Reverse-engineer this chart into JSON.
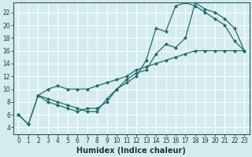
{
  "xlabel": "Humidex (Indice chaleur)",
  "bg_color": "#d4ecee",
  "grid_color": "#ffffff",
  "line_color": "#1e6b6b",
  "xlim": [
    -0.5,
    23.5
  ],
  "ylim": [
    3,
    23.5
  ],
  "xticks": [
    0,
    1,
    2,
    3,
    4,
    5,
    6,
    7,
    8,
    9,
    10,
    11,
    12,
    13,
    14,
    15,
    16,
    17,
    18,
    19,
    20,
    21,
    22,
    23
  ],
  "yticks": [
    4,
    6,
    8,
    10,
    12,
    14,
    16,
    18,
    20,
    22
  ],
  "line1_x": [
    0,
    1,
    2,
    3,
    4,
    5,
    6,
    7,
    8,
    9,
    10,
    11,
    12,
    13,
    14,
    15,
    16,
    17,
    18,
    19,
    20,
    21,
    22,
    23
  ],
  "line1_y": [
    6,
    4.5,
    9,
    8,
    7.5,
    7,
    6.5,
    7,
    7,
    8,
    10,
    11,
    12,
    14.5,
    19.5,
    19,
    23,
    23.5,
    23,
    22,
    21,
    20,
    17.5,
    16
  ],
  "line2_x": [
    2,
    3,
    4,
    5,
    6,
    7,
    8,
    9,
    10,
    11,
    12,
    13,
    14,
    15,
    16,
    17,
    18,
    19,
    20,
    21,
    22,
    23
  ],
  "line2_y": [
    9,
    8.5,
    8,
    7.5,
    7,
    6.5,
    6.5,
    8.5,
    10,
    11.5,
    12.5,
    13,
    15.5,
    17,
    16.5,
    18,
    23.5,
    22.5,
    22,
    21,
    19.5,
    16
  ],
  "line3_x": [
    0,
    1,
    2,
    3,
    4,
    5,
    6,
    7,
    8,
    9,
    10,
    11,
    12,
    13,
    14,
    15,
    16,
    17,
    18,
    19,
    20,
    21,
    22,
    23
  ],
  "line3_y": [
    6,
    4.5,
    9,
    10,
    10.5,
    10,
    10,
    10,
    10.5,
    11,
    11.5,
    12,
    13,
    13.5,
    14,
    14.5,
    15,
    15.5,
    16,
    16,
    16,
    16,
    16,
    16
  ],
  "xlabel_fontsize": 7,
  "tick_fontsize": 5.5,
  "marker_size": 2.5,
  "line_width": 0.9
}
